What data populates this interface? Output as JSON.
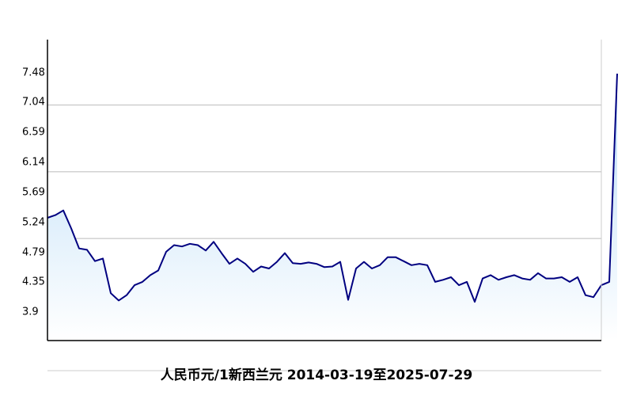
{
  "chart_data": {
    "type": "line",
    "title": "人民币元/1新西兰元  2014-03-19至2025-07-29",
    "values": [
      5.31,
      5.35,
      5.42,
      5.15,
      4.85,
      4.83,
      4.66,
      4.7,
      4.18,
      4.07,
      4.15,
      4.3,
      4.35,
      4.45,
      4.52,
      4.8,
      4.9,
      4.88,
      4.92,
      4.9,
      4.82,
      4.95,
      4.78,
      4.62,
      4.7,
      4.62,
      4.5,
      4.58,
      4.55,
      4.65,
      4.78,
      4.63,
      4.62,
      4.64,
      4.62,
      4.57,
      4.58,
      4.65,
      4.08,
      4.55,
      4.65,
      4.55,
      4.6,
      4.72,
      4.72,
      4.66,
      4.6,
      4.62,
      4.6,
      4.35,
      4.38,
      4.42,
      4.3,
      4.35,
      4.05,
      4.4,
      4.45,
      4.38,
      4.42,
      4.45,
      4.4,
      4.38,
      4.48,
      4.4,
      4.4,
      4.42,
      4.35,
      4.42,
      4.15,
      4.12,
      4.3,
      4.35,
      7.47
    ],
    "color": "#000080",
    "ylim": [
      3.47,
      7.98
    ],
    "yticks": [
      3.9,
      4.35,
      4.79,
      5.24,
      5.69,
      6.14,
      6.59,
      7.04,
      7.48
    ],
    "ygrid": [
      4,
      5,
      6,
      7
    ]
  }
}
